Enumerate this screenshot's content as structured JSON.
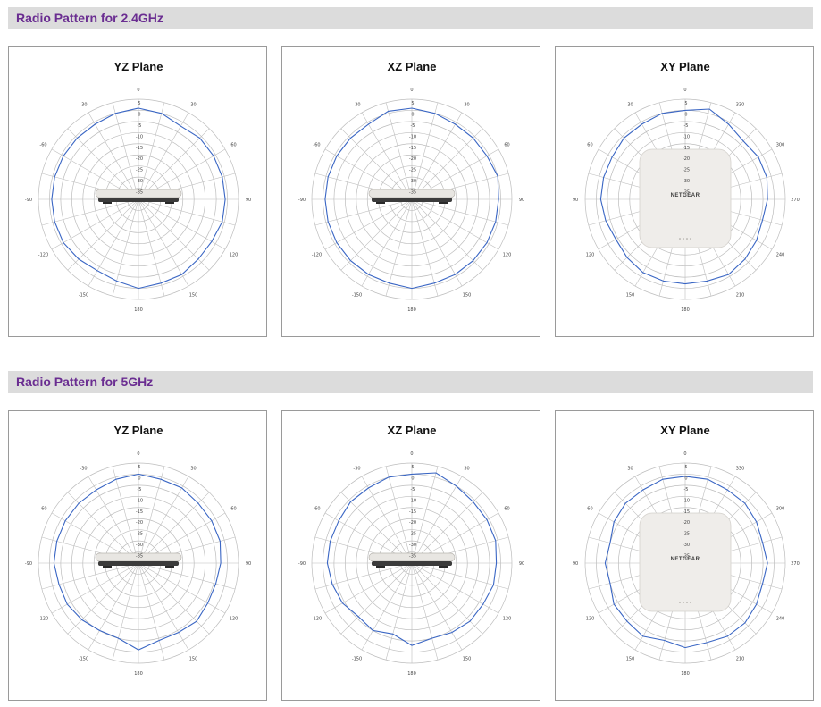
{
  "sections": [
    {
      "title": "Radio Pattern for 2.4GHz"
    },
    {
      "title": "Radio Pattern for 5GHz"
    }
  ],
  "device": {
    "logo": "NETGEAR"
  },
  "colors": {
    "series": "#3a66c4",
    "grid": "#bdbdbd",
    "title_accent": "#6a2d91"
  },
  "chart_data": [
    {
      "type": "polar-line",
      "band": "2.4GHz",
      "title": "YZ Plane",
      "angle_labels": [
        "0",
        "30",
        "60",
        "90",
        "120",
        "150",
        "180",
        "-150",
        "-120",
        "-90",
        "-60",
        "-30"
      ],
      "angle_label_angles": [
        0,
        30,
        60,
        90,
        120,
        150,
        180,
        210,
        240,
        270,
        300,
        330
      ],
      "radial_ticks": [
        "5",
        "0",
        "-5",
        "-10",
        "-15",
        "-20",
        "-25",
        "-30",
        "-35"
      ],
      "rlim": [
        -40,
        5
      ],
      "grid": true,
      "device_view": "side",
      "series": [
        {
          "angles": [
            0,
            15,
            30,
            45,
            60,
            75,
            90,
            105,
            120,
            135,
            150,
            165,
            180,
            195,
            210,
            225,
            240,
            255,
            270,
            285,
            300,
            315,
            330,
            345
          ],
          "values": [
            1,
            0,
            -2,
            -1,
            -1,
            -1,
            -1,
            -1,
            -2,
            -2,
            -1,
            -1,
            0,
            -2,
            -3,
            -2,
            -1,
            -1,
            -1,
            -1,
            -1,
            -1,
            -1,
            0
          ]
        }
      ]
    },
    {
      "type": "polar-line",
      "band": "2.4GHz",
      "title": "XZ Plane",
      "angle_labels": [
        "0",
        "30",
        "60",
        "90",
        "120",
        "150",
        "180",
        "-150",
        "-120",
        "-90",
        "-60",
        "-30"
      ],
      "angle_label_angles": [
        0,
        30,
        60,
        90,
        120,
        150,
        180,
        210,
        240,
        270,
        300,
        330
      ],
      "radial_ticks": [
        "5",
        "0",
        "-5",
        "-10",
        "-15",
        "-20",
        "-25",
        "-30",
        "-35"
      ],
      "rlim": [
        -40,
        5
      ],
      "grid": true,
      "device_view": "side",
      "series": [
        {
          "angles": [
            0,
            15,
            30,
            45,
            60,
            75,
            90,
            105,
            120,
            135,
            150,
            165,
            180,
            195,
            210,
            225,
            240,
            255,
            270,
            285,
            300,
            315,
            330,
            345
          ],
          "values": [
            1,
            0,
            -1,
            -1,
            -1,
            0,
            -1,
            -1,
            -1,
            -1,
            -1,
            -1,
            0,
            -1,
            -1,
            -1,
            -1,
            -1,
            -1,
            -1,
            -1,
            -1,
            -1,
            1
          ]
        }
      ]
    },
    {
      "type": "polar-line",
      "band": "2.4GHz",
      "title": "XY Plane",
      "angle_labels": [
        "0",
        "330",
        "300",
        "270",
        "240",
        "210",
        "180",
        "150",
        "120",
        "90",
        "60",
        "30"
      ],
      "angle_label_angles": [
        0,
        30,
        60,
        90,
        120,
        150,
        180,
        210,
        240,
        270,
        300,
        330
      ],
      "radial_ticks": [
        "5",
        "0",
        "-5",
        "-10",
        "-15",
        "-20",
        "-25",
        "-30",
        "-35"
      ],
      "rlim": [
        -40,
        5
      ],
      "grid": true,
      "device_view": "top",
      "series": [
        {
          "angles": [
            0,
            15,
            30,
            45,
            60,
            75,
            90,
            105,
            120,
            135,
            150,
            165,
            180,
            195,
            210,
            225,
            240,
            255,
            270,
            285,
            300,
            315,
            330,
            345
          ],
          "values": [
            0,
            2,
            -1,
            -3,
            -2,
            -2,
            -3,
            -4,
            -3,
            -2,
            -1,
            -2,
            -2,
            -2,
            -2,
            -3,
            -4,
            -3,
            -2,
            -2,
            -2,
            -1,
            -1,
            0
          ]
        }
      ]
    },
    {
      "type": "polar-line",
      "band": "5GHz",
      "title": "YZ Plane",
      "angle_labels": [
        "0",
        "30",
        "60",
        "90",
        "120",
        "150",
        "180",
        "-150",
        "-120",
        "-90",
        "-60",
        "-30"
      ],
      "angle_label_angles": [
        0,
        30,
        60,
        90,
        120,
        150,
        180,
        210,
        240,
        270,
        300,
        330
      ],
      "radial_ticks": [
        "5",
        "0",
        "-5",
        "-10",
        "-15",
        "-20",
        "-25",
        "-30",
        "-35"
      ],
      "rlim": [
        -40,
        5
      ],
      "grid": true,
      "device_view": "side",
      "series": [
        {
          "angles": [
            0,
            15,
            30,
            45,
            60,
            75,
            90,
            105,
            120,
            135,
            150,
            165,
            180,
            195,
            210,
            225,
            240,
            255,
            270,
            285,
            300,
            315,
            330,
            345
          ],
          "values": [
            0,
            -1,
            -1,
            -2,
            -2,
            -2,
            -3,
            -4,
            -4,
            -3,
            -4,
            -4,
            -1,
            -5,
            -5,
            -4,
            -3,
            -3,
            -2,
            -2,
            -2,
            -2,
            -2,
            -1
          ]
        }
      ]
    },
    {
      "type": "polar-line",
      "band": "5GHz",
      "title": "XZ Plane",
      "angle_labels": [
        "0",
        "30",
        "60",
        "90",
        "120",
        "150",
        "180",
        "-150",
        "-120",
        "-90",
        "-60",
        "-30"
      ],
      "angle_label_angles": [
        0,
        30,
        60,
        90,
        120,
        150,
        180,
        210,
        240,
        270,
        300,
        330
      ],
      "radial_ticks": [
        "5",
        "0",
        "-5",
        "-10",
        "-15",
        "-20",
        "-25",
        "-30",
        "-35"
      ],
      "rlim": [
        -40,
        5
      ],
      "grid": true,
      "device_view": "side",
      "series": [
        {
          "angles": [
            0,
            15,
            30,
            45,
            60,
            75,
            90,
            105,
            120,
            135,
            150,
            165,
            180,
            195,
            210,
            225,
            240,
            255,
            270,
            285,
            300,
            315,
            330,
            345
          ],
          "values": [
            0,
            2,
            0,
            -1,
            -1,
            -1,
            -2,
            -2,
            -3,
            -3,
            -4,
            -5,
            -3,
            -7,
            -5,
            -6,
            -4,
            -3,
            -2,
            -2,
            -2,
            -1,
            -1,
            0
          ]
        }
      ]
    },
    {
      "type": "polar-line",
      "band": "5GHz",
      "title": "XY Plane",
      "angle_labels": [
        "0",
        "330",
        "300",
        "270",
        "240",
        "210",
        "180",
        "150",
        "120",
        "90",
        "60",
        "30"
      ],
      "angle_label_angles": [
        0,
        30,
        60,
        90,
        120,
        150,
        180,
        210,
        240,
        270,
        300,
        330
      ],
      "radial_ticks": [
        "5",
        "0",
        "-5",
        "-10",
        "-15",
        "-20",
        "-25",
        "-30",
        "-35"
      ],
      "rlim": [
        -40,
        5
      ],
      "grid": true,
      "device_view": "top",
      "series": [
        {
          "angles": [
            0,
            15,
            30,
            45,
            60,
            75,
            90,
            105,
            120,
            135,
            150,
            165,
            180,
            195,
            210,
            225,
            240,
            255,
            270,
            285,
            300,
            315,
            330,
            345
          ],
          "values": [
            -1,
            -1,
            -2,
            -2,
            -3,
            -4,
            -3,
            -4,
            -3,
            -2,
            -2,
            -3,
            -2,
            -4,
            -2,
            -3,
            -3,
            -5,
            -4,
            -5,
            -3,
            -2,
            -2,
            -1
          ]
        }
      ]
    }
  ]
}
